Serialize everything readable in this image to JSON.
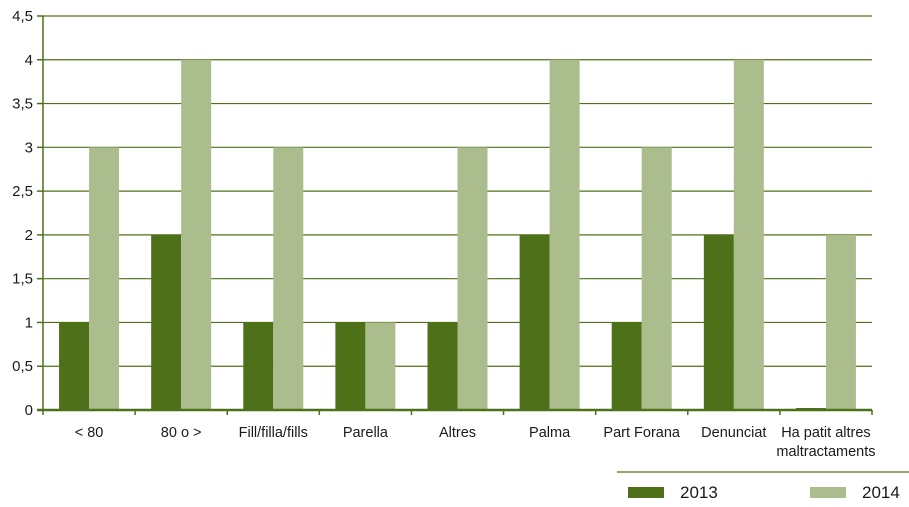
{
  "chart_data": {
    "type": "bar",
    "title": "",
    "xlabel": "",
    "ylabel": "",
    "categories": [
      [
        "< 80"
      ],
      [
        "80 o >"
      ],
      [
        "Fill/filla/fills"
      ],
      [
        "Parella"
      ],
      [
        "Altres"
      ],
      [
        "Palma"
      ],
      [
        "Part Forana"
      ],
      [
        "Denunciat"
      ],
      [
        "Ha patit altres",
        "maltractaments"
      ]
    ],
    "series": [
      {
        "name": "2013",
        "color": "#4e7018",
        "values": [
          1,
          2,
          1,
          1,
          1,
          2,
          1,
          2,
          0
        ]
      },
      {
        "name": "2014",
        "color": "#abbd8d",
        "values": [
          3,
          4,
          3,
          1,
          3,
          4,
          3,
          4,
          2
        ]
      }
    ],
    "ylim": [
      0,
      4.5
    ],
    "yticks": [
      "0",
      "0,5",
      "1",
      "1,5",
      "2",
      "2,5",
      "3",
      "3,5",
      "4",
      "4,5"
    ],
    "grid": true,
    "legend_position": "bottom-right",
    "axis_color": "#4e7018"
  }
}
